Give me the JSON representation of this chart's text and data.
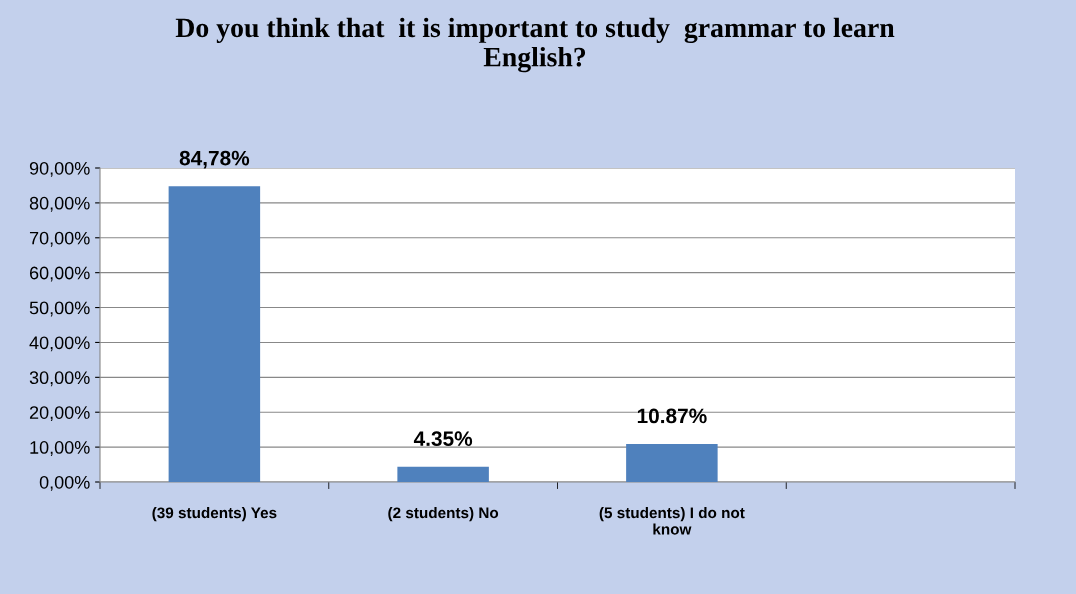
{
  "chart_data": {
    "type": "bar",
    "title": "Do you think that  it is important to study  grammar to learn\nEnglish?",
    "categories": [
      "(39 students) Yes",
      "(2 students) No",
      "(5 students) I do not\nknow",
      null
    ],
    "values": [
      84.78,
      4.35,
      10.87,
      null
    ],
    "color": "#4f81bd",
    "value_labels": [
      "84,78%",
      "4.35%",
      "10.87%",
      null
    ],
    "ylim": [
      0,
      90
    ],
    "yticks": [
      {
        "value": 0,
        "label": "0,00%"
      },
      {
        "value": 10,
        "label": "10,00%"
      },
      {
        "value": 20,
        "label": "20,00%"
      },
      {
        "value": 30,
        "label": "30,00%"
      },
      {
        "value": 40,
        "label": "40,00%"
      },
      {
        "value": 50,
        "label": "50,00%"
      },
      {
        "value": 60,
        "label": "60,00%"
      },
      {
        "value": 70,
        "label": "70,00%"
      },
      {
        "value": 80,
        "label": "80,00%"
      },
      {
        "value": 90,
        "label": "90,00%"
      }
    ],
    "grid": "y",
    "legend": false
  }
}
